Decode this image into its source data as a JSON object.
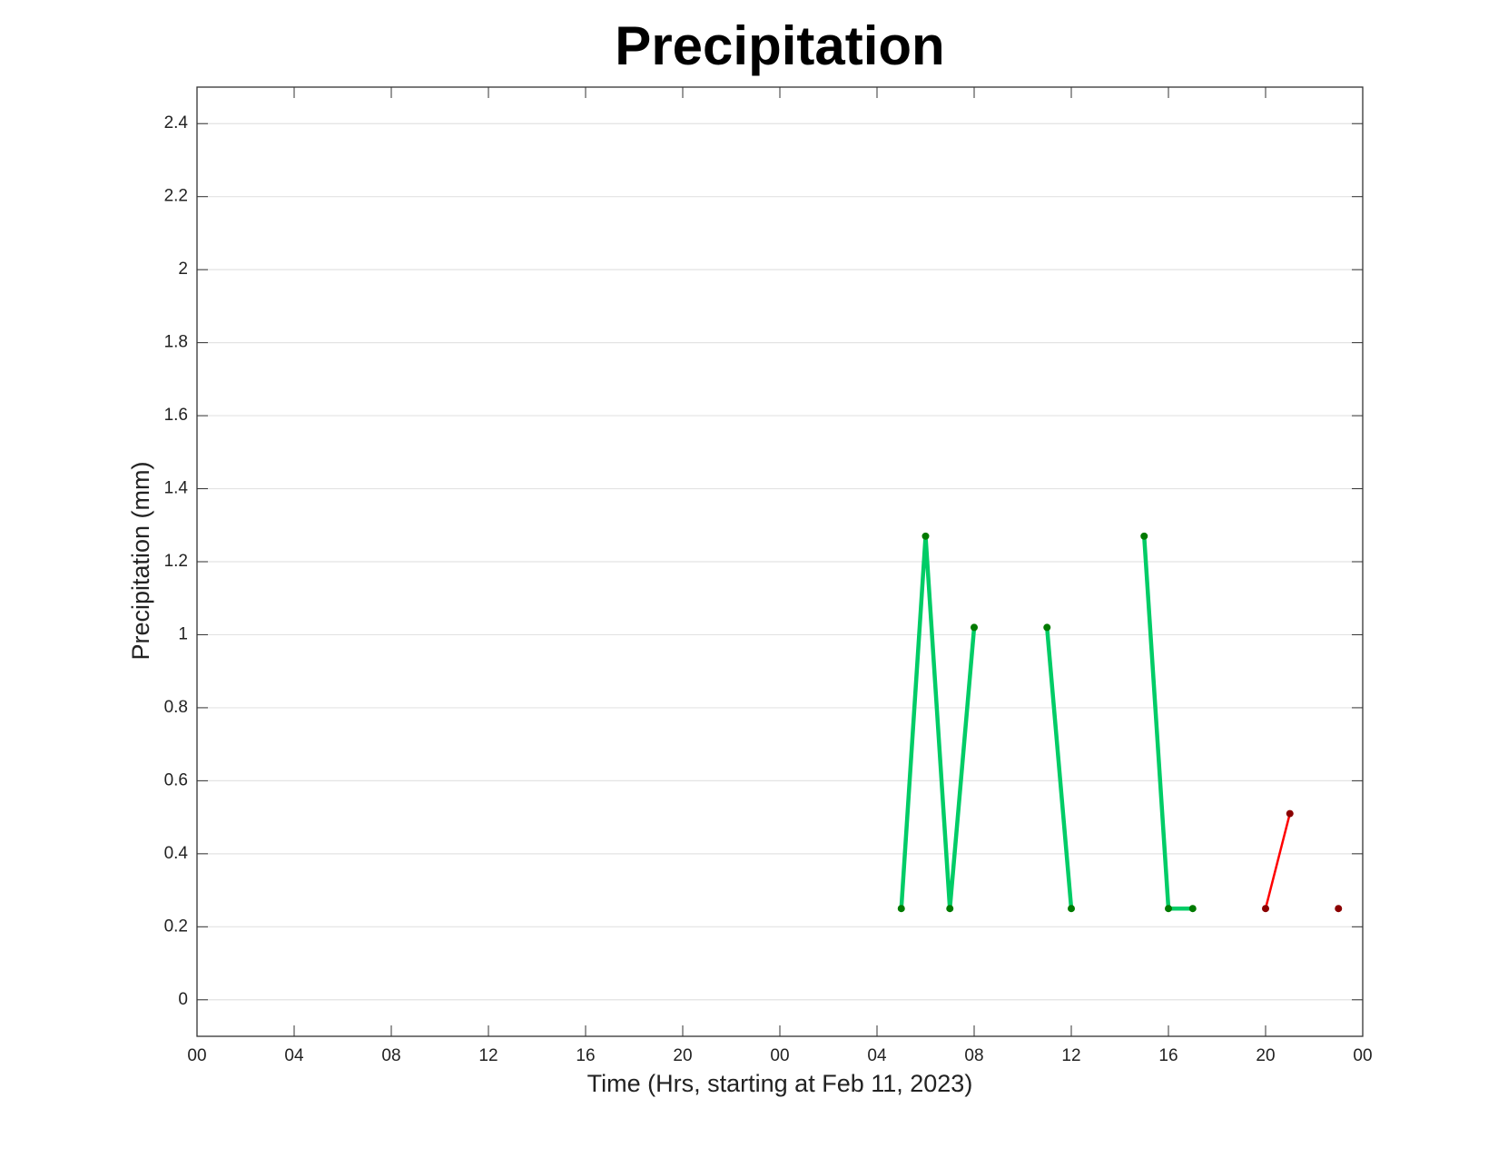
{
  "chart_data": {
    "type": "line",
    "title": "Precipitation",
    "x_label": "Time (Hrs, starting at Feb 11, 2023)",
    "y_label": "Precipitation (mm)",
    "xlim": [
      0,
      48
    ],
    "xticks": [
      {
        "value": 0,
        "label": "00"
      },
      {
        "value": 4,
        "label": "04"
      },
      {
        "value": 8,
        "label": "08"
      },
      {
        "value": 12,
        "label": "12"
      },
      {
        "value": 16,
        "label": "16"
      },
      {
        "value": 20,
        "label": "20"
      },
      {
        "value": 24,
        "label": "00"
      },
      {
        "value": 28,
        "label": "04"
      },
      {
        "value": 32,
        "label": "08"
      },
      {
        "value": 36,
        "label": "12"
      },
      {
        "value": 40,
        "label": "16"
      },
      {
        "value": 44,
        "label": "20"
      },
      {
        "value": 48,
        "label": "00"
      }
    ],
    "ylim": [
      -0.1,
      2.5
    ],
    "yticks": [
      0,
      0.2,
      0.4,
      0.6,
      0.8,
      1,
      1.2,
      1.4,
      1.6,
      1.8,
      2,
      2.2,
      2.4
    ],
    "grid": true,
    "series": [
      {
        "color": "#00cc66",
        "marker_color": "#007a00",
        "line_width": 4.5,
        "x": [
          29,
          30,
          31,
          32,
          33,
          35,
          36,
          37,
          39,
          40,
          41
        ],
        "values": [
          0.25,
          1.27,
          0.25,
          1.02,
          null,
          1.02,
          0.25,
          null,
          1.27,
          0.25,
          0.25
        ]
      },
      {
        "color": "#ff0000",
        "marker_color": "#8b0000",
        "line_width": 2.5,
        "x": [
          44,
          45,
          46,
          47
        ],
        "values": [
          0.25,
          0.51,
          null,
          0.25
        ]
      }
    ]
  }
}
